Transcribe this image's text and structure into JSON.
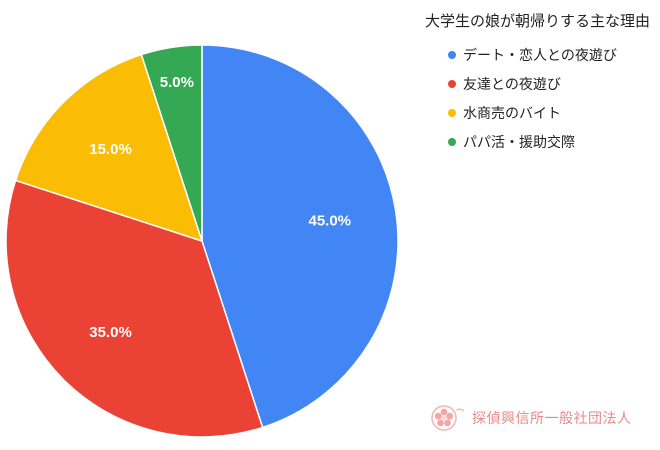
{
  "chart_data": {
    "type": "pie",
    "title": "大学生の娘が朝帰りする主な理由",
    "legend_position": "top-right",
    "slices": [
      {
        "label": "デート・恋人との夜遊び",
        "value": 45.0,
        "display": "45.0%",
        "color": "#4285f4"
      },
      {
        "label": "友達との夜遊び",
        "value": 35.0,
        "display": "35.0%",
        "color": "#ea4335"
      },
      {
        "label": "水商売のバイト",
        "value": 15.0,
        "display": "15.0%",
        "color": "#fbbc04"
      },
      {
        "label": "パパ活・援助交際",
        "value": 5.0,
        "display": "5.0%",
        "color": "#34a853"
      }
    ]
  },
  "watermark": {
    "text": "探偵興信所一般社団法人",
    "color": "#e98a8a",
    "icon": "cherry-blossom-logo-icon"
  }
}
